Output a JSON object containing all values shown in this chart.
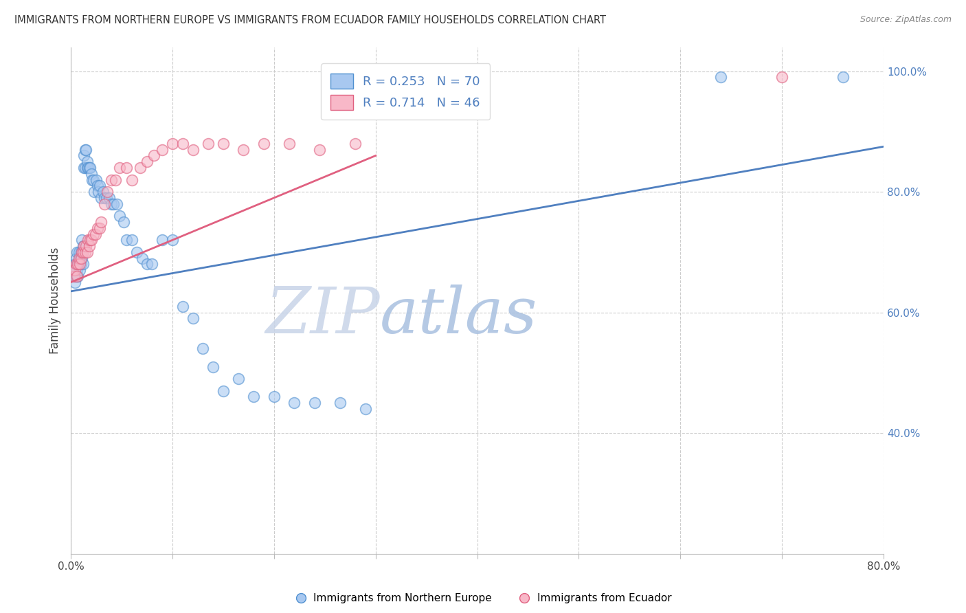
{
  "title": "IMMIGRANTS FROM NORTHERN EUROPE VS IMMIGRANTS FROM ECUADOR FAMILY HOUSEHOLDS CORRELATION CHART",
  "source": "Source: ZipAtlas.com",
  "ylabel": "Family Households",
  "xlim": [
    0.0,
    0.8
  ],
  "ylim": [
    0.2,
    1.04
  ],
  "yticks": [
    0.4,
    0.6,
    0.8,
    1.0
  ],
  "ytick_labels": [
    "40.0%",
    "60.0%",
    "80.0%",
    "100.0%"
  ],
  "xticks": [
    0.0,
    0.1,
    0.2,
    0.3,
    0.4,
    0.5,
    0.6,
    0.7,
    0.8
  ],
  "xtick_labels": [
    "0.0%",
    "",
    "",
    "",
    "",
    "",
    "",
    "",
    "80.0%"
  ],
  "legend_blue_R": "0.253",
  "legend_blue_N": "70",
  "legend_pink_R": "0.714",
  "legend_pink_N": "46",
  "blue_fill": "#A8C8F0",
  "pink_fill": "#F8B8C8",
  "blue_edge": "#5090D0",
  "pink_edge": "#E06080",
  "blue_line": "#5080C0",
  "pink_line": "#E06080",
  "wm_zip_color": "#C8D4E8",
  "wm_atlas_color": "#A8B8E0",
  "blue_scatter_x": [
    0.002,
    0.003,
    0.004,
    0.004,
    0.005,
    0.005,
    0.006,
    0.006,
    0.007,
    0.007,
    0.008,
    0.008,
    0.009,
    0.009,
    0.01,
    0.01,
    0.011,
    0.011,
    0.012,
    0.012,
    0.013,
    0.013,
    0.014,
    0.014,
    0.015,
    0.016,
    0.016,
    0.017,
    0.018,
    0.019,
    0.02,
    0.021,
    0.022,
    0.023,
    0.025,
    0.026,
    0.027,
    0.028,
    0.03,
    0.032,
    0.033,
    0.035,
    0.038,
    0.04,
    0.042,
    0.045,
    0.048,
    0.052,
    0.055,
    0.06,
    0.065,
    0.07,
    0.075,
    0.08,
    0.09,
    0.1,
    0.11,
    0.12,
    0.13,
    0.14,
    0.15,
    0.165,
    0.18,
    0.2,
    0.22,
    0.24,
    0.265,
    0.29,
    0.76,
    0.64
  ],
  "blue_scatter_y": [
    0.67,
    0.66,
    0.65,
    0.68,
    0.66,
    0.69,
    0.67,
    0.7,
    0.66,
    0.68,
    0.68,
    0.7,
    0.67,
    0.69,
    0.68,
    0.7,
    0.69,
    0.72,
    0.68,
    0.71,
    0.84,
    0.86,
    0.84,
    0.87,
    0.87,
    0.84,
    0.85,
    0.84,
    0.84,
    0.84,
    0.83,
    0.82,
    0.82,
    0.8,
    0.82,
    0.81,
    0.8,
    0.81,
    0.79,
    0.8,
    0.79,
    0.79,
    0.79,
    0.78,
    0.78,
    0.78,
    0.76,
    0.75,
    0.72,
    0.72,
    0.7,
    0.69,
    0.68,
    0.68,
    0.72,
    0.72,
    0.61,
    0.59,
    0.54,
    0.51,
    0.47,
    0.49,
    0.46,
    0.46,
    0.45,
    0.45,
    0.45,
    0.44,
    0.99,
    0.99
  ],
  "pink_scatter_x": [
    0.002,
    0.003,
    0.004,
    0.005,
    0.006,
    0.007,
    0.008,
    0.009,
    0.01,
    0.011,
    0.012,
    0.013,
    0.014,
    0.015,
    0.016,
    0.017,
    0.018,
    0.019,
    0.02,
    0.022,
    0.024,
    0.026,
    0.028,
    0.03,
    0.033,
    0.036,
    0.04,
    0.044,
    0.048,
    0.055,
    0.06,
    0.068,
    0.075,
    0.082,
    0.09,
    0.1,
    0.11,
    0.12,
    0.135,
    0.15,
    0.17,
    0.19,
    0.215,
    0.245,
    0.28,
    0.7
  ],
  "pink_scatter_y": [
    0.67,
    0.66,
    0.67,
    0.68,
    0.66,
    0.68,
    0.69,
    0.68,
    0.69,
    0.7,
    0.7,
    0.71,
    0.7,
    0.71,
    0.7,
    0.72,
    0.71,
    0.72,
    0.72,
    0.73,
    0.73,
    0.74,
    0.74,
    0.75,
    0.78,
    0.8,
    0.82,
    0.82,
    0.84,
    0.84,
    0.82,
    0.84,
    0.85,
    0.86,
    0.87,
    0.88,
    0.88,
    0.87,
    0.88,
    0.88,
    0.87,
    0.88,
    0.88,
    0.87,
    0.88,
    0.99
  ],
  "blue_trend_x": [
    0.0,
    0.8
  ],
  "blue_trend_y": [
    0.635,
    0.875
  ],
  "pink_trend_x": [
    0.0,
    0.3
  ],
  "pink_trend_y": [
    0.65,
    0.86
  ],
  "legend_items": [
    {
      "label": "Immigrants from Northern Europe",
      "color": "#A8C8F0",
      "edge": "#5090D0"
    },
    {
      "label": "Immigrants from Ecuador",
      "color": "#F8B8C8",
      "edge": "#E06080"
    }
  ]
}
